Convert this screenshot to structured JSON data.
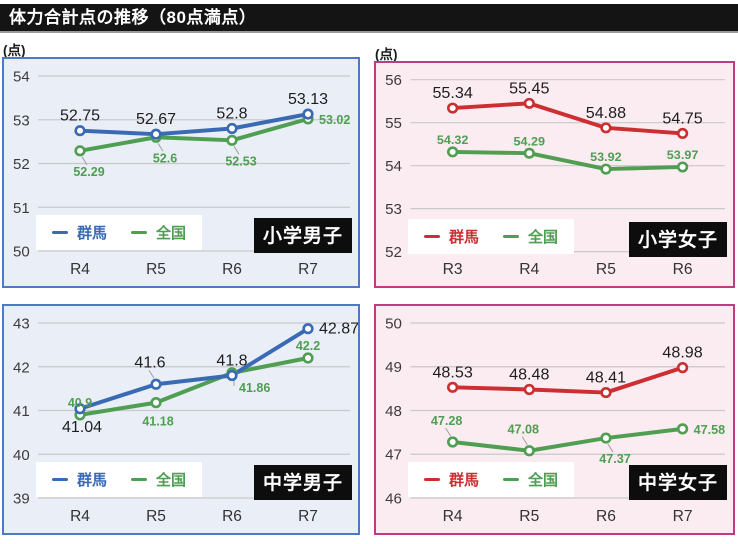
{
  "page": {
    "title": "体力合計点の推移（80点満点）",
    "unit_label": "(点)"
  },
  "colors": {
    "banner_bg": "#141414",
    "banner_text": "#ffffff",
    "blue_card_border": "#4d7ac4",
    "blue_card_bg": "#e9eef7",
    "pink_card_border": "#c13b82",
    "pink_card_bg": "#fbecf2",
    "gunma_blue": "#3a6ab3",
    "gunma_red": "#cc2f31",
    "zenkoku_green": "#4f9e51",
    "grid_line": "#c9c9c9",
    "tick_text": "#3c3c3c",
    "value_label_dark": "#1e1e1e",
    "leader_line": "#a0a0a0",
    "category_label_bg": "#0d0d0d",
    "category_label_text": "#ffffff",
    "legend_bg": "#ffffff"
  },
  "chart_data": [
    {
      "type": "line",
      "title": "小学男子",
      "theme": "blue",
      "categories": [
        "R4",
        "R5",
        "R6",
        "R7"
      ],
      "ylim": [
        50,
        54
      ],
      "yticks": [
        54,
        53,
        52,
        51,
        50
      ],
      "grid": true,
      "legend_position": "bottom-left",
      "series": [
        {
          "name": "群馬",
          "color": "#3a6ab3",
          "values": [
            52.75,
            52.67,
            52.8,
            53.13
          ],
          "label_style": "dark",
          "label_pos": [
            "above",
            "above",
            "above",
            "above"
          ]
        },
        {
          "name": "全国",
          "color": "#4f9e51",
          "values": [
            52.29,
            52.6,
            52.53,
            53.02
          ],
          "label_style": "green",
          "label_pos": [
            "below-leader",
            "below-leader",
            "below-leader",
            "right"
          ]
        }
      ]
    },
    {
      "type": "line",
      "title": "小学女子",
      "theme": "pink",
      "categories": [
        "R3",
        "R4",
        "R5",
        "R6"
      ],
      "ylim": [
        52,
        56
      ],
      "yticks": [
        56,
        55,
        54,
        53,
        52
      ],
      "grid": true,
      "legend_position": "bottom-left",
      "series": [
        {
          "name": "群馬",
          "color": "#cc2f31",
          "values": [
            55.34,
            55.45,
            54.88,
            54.75
          ],
          "label_style": "dark",
          "label_pos": [
            "above",
            "above",
            "above",
            "above"
          ]
        },
        {
          "name": "全国",
          "color": "#4f9e51",
          "values": [
            54.32,
            54.29,
            53.92,
            53.97
          ],
          "label_style": "green",
          "label_pos": [
            "above",
            "above",
            "above",
            "above"
          ]
        }
      ]
    },
    {
      "type": "line",
      "title": "中学男子",
      "theme": "blue",
      "categories": [
        "R4",
        "R5",
        "R6",
        "R7"
      ],
      "ylim": [
        39,
        43
      ],
      "yticks": [
        43,
        42,
        41,
        40,
        39
      ],
      "grid": true,
      "legend_position": "bottom-left",
      "series": [
        {
          "name": "群馬",
          "color": "#3a6ab3",
          "values": [
            41.04,
            41.6,
            41.8,
            42.87
          ],
          "label_style": "dark",
          "label_pos": [
            "below",
            "above-leader",
            "above",
            "right"
          ]
        },
        {
          "name": "全国",
          "color": "#4f9e51",
          "values": [
            40.9,
            41.18,
            41.86,
            42.2
          ],
          "label_style": "green",
          "label_pos": [
            "above",
            "below",
            "below-right-leader",
            "above"
          ]
        }
      ]
    },
    {
      "type": "line",
      "title": "中学女子",
      "theme": "pink",
      "categories": [
        "R4",
        "R5",
        "R6",
        "R7"
      ],
      "ylim": [
        46,
        50
      ],
      "yticks": [
        50,
        49,
        48,
        47,
        46
      ],
      "grid": true,
      "legend_position": "bottom-left",
      "series": [
        {
          "name": "群馬",
          "color": "#cc2f31",
          "values": [
            48.53,
            48.48,
            48.41,
            48.98
          ],
          "label_style": "dark",
          "label_pos": [
            "above",
            "above",
            "above",
            "above"
          ]
        },
        {
          "name": "全国",
          "color": "#4f9e51",
          "values": [
            47.28,
            47.08,
            47.37,
            47.58
          ],
          "label_style": "green",
          "label_pos": [
            "above-leader",
            "above-leader",
            "below-leader",
            "right"
          ]
        }
      ]
    }
  ]
}
